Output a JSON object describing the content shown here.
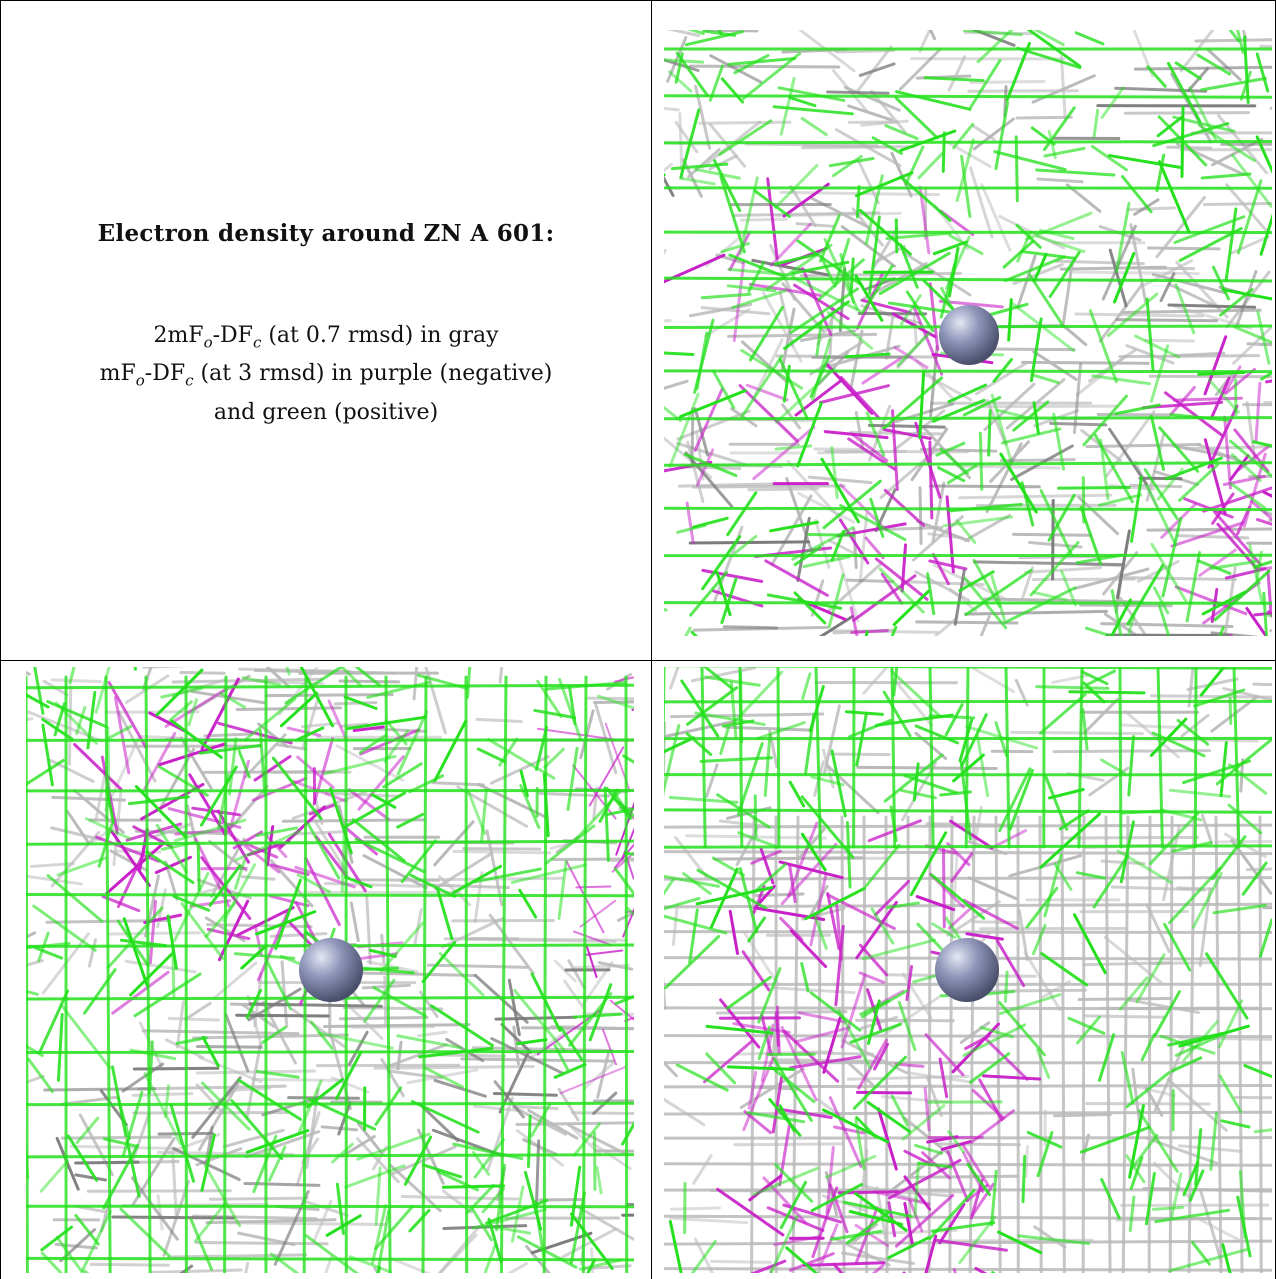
{
  "caption": {
    "title": "Electron density around ZN A 601:",
    "line1_prefix": "2mF",
    "line1_sub1": "o",
    "line1_mid": "-DF",
    "line1_sub2": "c",
    "line1_suffix": " (at 0.7 rmsd) in gray",
    "line2_prefix": "mF",
    "line2_sub1": "o",
    "line2_mid": "-DF",
    "line2_sub2": "c",
    "line2_suffix": " (at 3 rmsd) in purple (negative)",
    "line3": "and green (positive)"
  },
  "colors": {
    "gray_mesh": "#b8b8b8",
    "dark_gray_mesh": "#7a7a7a",
    "positive_mesh": "#22e01a",
    "negative_mesh": "#c81ec8",
    "zinc_atom": "#8e95b8"
  },
  "panels": [
    {
      "name": "view-1"
    },
    {
      "name": "view-2"
    },
    {
      "name": "view-3"
    }
  ]
}
